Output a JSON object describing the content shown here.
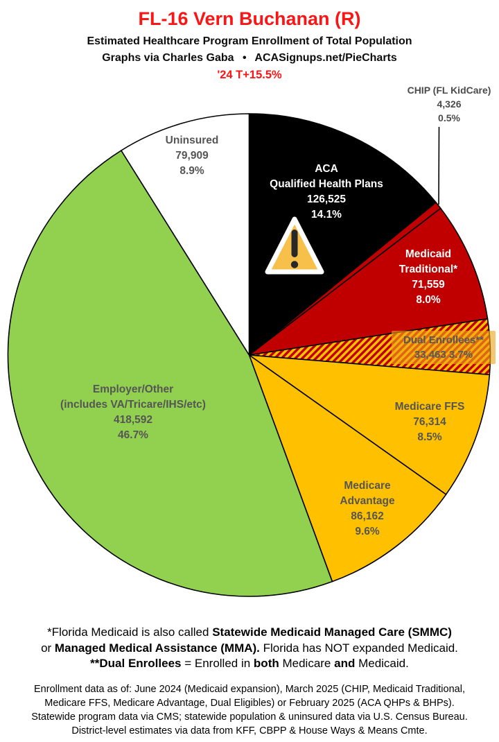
{
  "header": {
    "title": "FL-16 Vern Buchanan (R)",
    "subtitle": "Estimated Healthcare Program Enrollment of Total Population",
    "byline": "Graphs via Charles Gaba  •  ACASignups.net/PieCharts",
    "trend": "'24 T+15.5%"
  },
  "colors": {
    "title_red": "#F81616",
    "trend_red": "#F81616",
    "label_gray": "#555555",
    "pie_outline": "#000000",
    "dual_label_bg": "rgba(238,164,28,0.62)",
    "warning_fill": "#F6C04A",
    "warning_mark": "#282828"
  },
  "chart_data": {
    "type": "pie",
    "title": "FL-16 Vern Buchanan (R) — Estimated Healthcare Program Enrollment of Total Population",
    "direction": "clockwise",
    "start_angle": "12 o'clock",
    "slices": [
      {
        "id": "aca-qhp",
        "name": "ACA Qualified Health Plans",
        "value": 126525,
        "pct": 14.1,
        "color": "#000000",
        "display": {
          "line1": "ACA",
          "line2": "Qualified Health Plans",
          "value": "126,525",
          "pct": "14.1%"
        }
      },
      {
        "id": "chip",
        "name": "CHIP (FL KidCare)",
        "value": 4326,
        "pct": 0.5,
        "color": "#C00000",
        "display": {
          "line1": "CHIP (FL KidCare)",
          "value": "4,326",
          "pct": "0.5%"
        }
      },
      {
        "id": "medicaid-traditional",
        "name": "Medicaid Traditional*",
        "value": 71559,
        "pct": 8.0,
        "color": "#C00000",
        "display": {
          "line1": "Medicaid",
          "line2": "Traditional*",
          "value": "71,559",
          "pct": "8.0%"
        }
      },
      {
        "id": "dual-enrollees",
        "name": "Dual Enrollees**",
        "value": 33463,
        "pct": 3.7,
        "color": "#FFC000",
        "hatch": {
          "bg": "#FFC000",
          "stripe": "#C00000"
        },
        "display": {
          "line1": "Dual Enrollees**",
          "value": "33,463",
          "pct": "3.7%"
        }
      },
      {
        "id": "medicare-ffs",
        "name": "Medicare FFS",
        "value": 76314,
        "pct": 8.5,
        "color": "#FFC000",
        "display": {
          "line1": "Medicare FFS",
          "value": "76,314",
          "pct": "8.5%"
        }
      },
      {
        "id": "medicare-advantage",
        "name": "Medicare Advantage",
        "value": 86162,
        "pct": 9.6,
        "color": "#FFC000",
        "display": {
          "line1": "Medicare",
          "line2": "Advantage",
          "value": "86,162",
          "pct": "9.6%"
        }
      },
      {
        "id": "employer-other",
        "name": "Employer/Other (includes VA/Tricare/IHS/etc)",
        "value": 418592,
        "pct": 46.7,
        "color": "#92D050",
        "display": {
          "line1": "Employer/Other",
          "line2": "(includes VA/Tricare/IHS/etc)",
          "value": "418,592",
          "pct": "46.7%"
        }
      },
      {
        "id": "uninsured",
        "name": "Uninsured",
        "value": 79909,
        "pct": 8.9,
        "color": "#FFFFFF",
        "display": {
          "line1": "Uninsured",
          "value": "79,909",
          "pct": "8.9%"
        }
      }
    ]
  },
  "footnotes": {
    "line1": [
      {
        "t": "*Florida Medicaid is also called ",
        "b": false
      },
      {
        "t": "Statewide Medicaid Managed Care (SMMC)",
        "b": true
      }
    ],
    "line2": [
      {
        "t": "or ",
        "b": false
      },
      {
        "t": "Managed Medical Assistance (MMA).",
        "b": true
      },
      {
        "t": " Florida has NOT expanded Medicaid.",
        "b": false
      }
    ],
    "line3": [
      {
        "t": "**Dual Enrollees",
        "b": true
      },
      {
        "t": " = Enrolled in ",
        "b": false
      },
      {
        "t": "both",
        "b": true
      },
      {
        "t": " Medicare ",
        "b": false
      },
      {
        "t": "and",
        "b": true
      },
      {
        "t": " Medicaid.",
        "b": false
      }
    ]
  },
  "source": {
    "lines": [
      "Enrollment data as of: June 2024 (Medicaid expansion), March 2025 (CHIP, Medicaid Traditional,",
      "Medicare FFS, Medicare Advantage, Dual Eligibles) or February 2025 (ACA QHPs & BHPs).",
      "Statewide program data via CMS; statewide population & uninsured data via U.S. Census Bureau.",
      "District-level estimates via data from KFF, CBPP & House Ways & Means Cmte."
    ]
  }
}
